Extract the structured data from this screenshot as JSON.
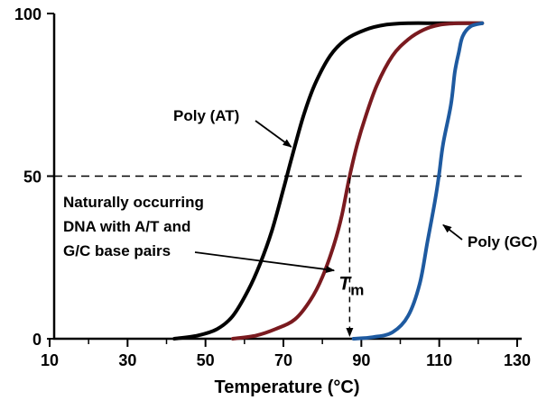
{
  "chart_data": {
    "type": "line",
    "title": "",
    "xlabel": "Temperature (°C)",
    "ylabel": "",
    "xlim": [
      10,
      130
    ],
    "ylim": [
      0,
      100
    ],
    "x_ticks": [
      10,
      30,
      50,
      70,
      90,
      110,
      130
    ],
    "x_minor_ticks": [
      20,
      40,
      60,
      80,
      100,
      120
    ],
    "y_ticks": [
      0,
      50,
      100
    ],
    "grid": false,
    "reference_line": {
      "y": 50,
      "style": "dashed"
    },
    "series": [
      {
        "name": "Poly (AT)",
        "color": "#000000",
        "points": [
          [
            42,
            0
          ],
          [
            48,
            1
          ],
          [
            53,
            3
          ],
          [
            57,
            7
          ],
          [
            61,
            15
          ],
          [
            64,
            23
          ],
          [
            67,
            33
          ],
          [
            70,
            46
          ],
          [
            72,
            55
          ],
          [
            75,
            68
          ],
          [
            78,
            78
          ],
          [
            82,
            87
          ],
          [
            86,
            92
          ],
          [
            91,
            95
          ],
          [
            96,
            96.5
          ],
          [
            102,
            97
          ],
          [
            110,
            97
          ],
          [
            121,
            97
          ]
        ]
      },
      {
        "name": "Naturally occurring DNA with A/T and G/C base pairs",
        "color": "#7a1a1f",
        "points": [
          [
            57,
            0
          ],
          [
            63,
            1
          ],
          [
            68,
            3
          ],
          [
            73,
            6
          ],
          [
            77,
            12
          ],
          [
            80,
            19
          ],
          [
            83,
            29
          ],
          [
            85,
            38
          ],
          [
            87,
            50
          ],
          [
            89,
            60
          ],
          [
            91,
            68
          ],
          [
            94,
            78
          ],
          [
            98,
            87
          ],
          [
            102,
            92
          ],
          [
            106,
            95
          ],
          [
            110,
            96.5
          ],
          [
            115,
            97
          ],
          [
            121,
            97
          ]
        ]
      },
      {
        "name": "Poly (GC)",
        "color": "#1e5aa0",
        "points": [
          [
            88,
            0
          ],
          [
            93,
            0.5
          ],
          [
            98,
            2
          ],
          [
            102,
            7
          ],
          [
            105,
            17
          ],
          [
            107,
            30
          ],
          [
            109,
            43
          ],
          [
            110,
            51
          ],
          [
            111,
            60
          ],
          [
            113,
            72
          ],
          [
            114,
            82
          ],
          [
            115,
            88
          ],
          [
            116,
            93
          ],
          [
            118,
            96
          ],
          [
            121,
            97
          ]
        ]
      }
    ],
    "annotations": {
      "poly_at": {
        "text": "Poly (AT)",
        "points_to": [
          72,
          59
        ]
      },
      "natural_lines": [
        "Naturally occurring",
        "DNA with A/T and",
        "G/C base pairs"
      ],
      "natural_points_to": [
        83,
        21
      ],
      "poly_gc": {
        "text": "Poly (GC)",
        "points_to": [
          111,
          35
        ]
      },
      "tm": {
        "symbol": "T",
        "subscript": "m",
        "x": 87,
        "from_y": 50,
        "to_y": 0
      }
    }
  }
}
